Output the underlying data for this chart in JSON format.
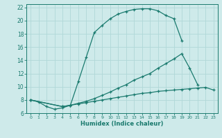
{
  "xlabel": "Humidex (Indice chaleur)",
  "bg_color": "#ceeaea",
  "grid_color": "#b0d8d8",
  "line_color": "#1a7a6e",
  "xlim": [
    -0.5,
    23.5
  ],
  "ylim": [
    6,
    22.5
  ],
  "xticks": [
    0,
    1,
    2,
    3,
    4,
    5,
    6,
    7,
    8,
    9,
    10,
    11,
    12,
    13,
    14,
    15,
    16,
    17,
    18,
    19,
    20,
    21,
    22,
    23
  ],
  "yticks": [
    6,
    8,
    10,
    12,
    14,
    16,
    18,
    20,
    22
  ],
  "series": [
    {
      "x": [
        0,
        1,
        2,
        3,
        4,
        5,
        6,
        7,
        8,
        9,
        10,
        11,
        12,
        13,
        14,
        15,
        16,
        17,
        18,
        19
      ],
      "y": [
        8,
        7.7,
        7.0,
        6.6,
        6.8,
        7.2,
        10.8,
        14.5,
        18.2,
        19.3,
        20.3,
        21.0,
        21.4,
        21.7,
        21.8,
        21.8,
        21.5,
        20.8,
        20.3,
        17.0
      ]
    },
    {
      "x": [
        0,
        4,
        5,
        6,
        7,
        8,
        9,
        10,
        11,
        12,
        13,
        14,
        15,
        16,
        17,
        18,
        19,
        20,
        21
      ],
      "y": [
        8,
        7.0,
        7.2,
        7.5,
        7.8,
        8.2,
        8.7,
        9.2,
        9.8,
        10.3,
        11.0,
        11.5,
        12.0,
        12.8,
        13.5,
        14.2,
        15.0,
        12.8,
        10.3
      ]
    },
    {
      "x": [
        0,
        4,
        5,
        6,
        7,
        8,
        9,
        10,
        11,
        12,
        13,
        14,
        15,
        16,
        17,
        18,
        19,
        20,
        21,
        22,
        23
      ],
      "y": [
        8,
        7.0,
        7.2,
        7.4,
        7.6,
        7.8,
        8.0,
        8.2,
        8.4,
        8.6,
        8.8,
        9.0,
        9.1,
        9.3,
        9.4,
        9.5,
        9.6,
        9.7,
        9.8,
        9.9,
        9.5
      ]
    }
  ]
}
